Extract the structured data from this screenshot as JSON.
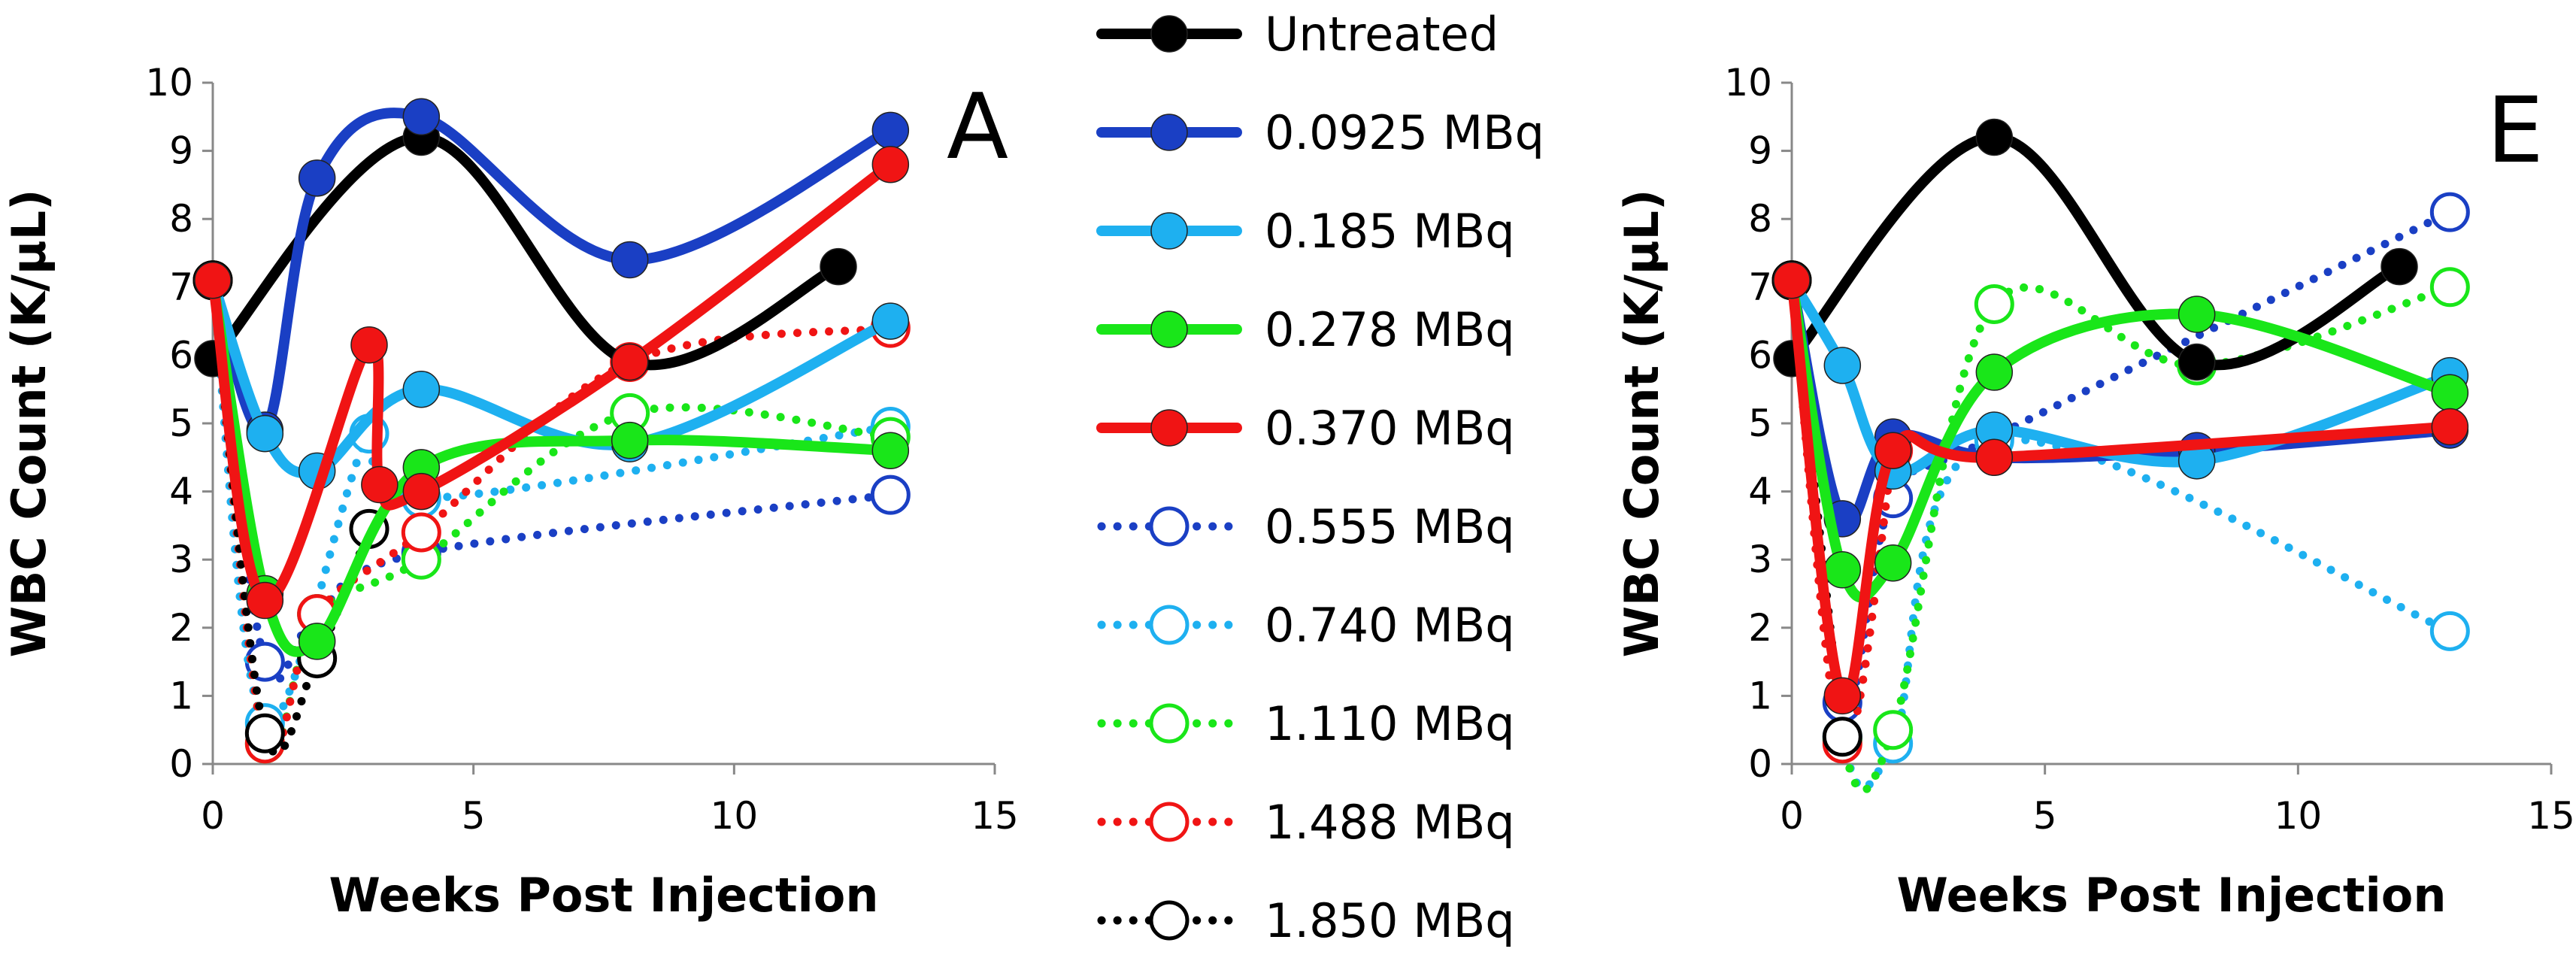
{
  "chart_data": [
    {
      "type": "line",
      "panel_label": "A",
      "xlabel": "Weeks Post Injection",
      "ylabel": "WBC Count (K/µL)",
      "xlim": [
        0,
        15
      ],
      "ylim": [
        0,
        10
      ],
      "xticks": [
        "0",
        "5",
        "10",
        "15"
      ],
      "yticks": [
        "0",
        "1",
        "2",
        "3",
        "4",
        "5",
        "6",
        "7",
        "8",
        "9",
        "10"
      ],
      "series": [
        {
          "name": "Untreated",
          "x": [
            0,
            4,
            8,
            12
          ],
          "y": [
            5.95,
            9.2,
            5.9,
            7.3
          ]
        },
        {
          "name": "0.0925 MBq",
          "x": [
            0,
            1,
            2,
            4,
            8,
            13
          ],
          "y": [
            7.1,
            4.9,
            8.6,
            9.5,
            7.4,
            9.3
          ]
        },
        {
          "name": "0.185 MBq",
          "x": [
            0,
            1,
            2,
            4,
            8,
            13
          ],
          "y": [
            7.1,
            4.85,
            4.3,
            5.5,
            4.7,
            6.5
          ]
        },
        {
          "name": "0.278 MBq",
          "x": [
            0,
            1,
            2,
            4,
            8,
            13
          ],
          "y": [
            7.1,
            2.5,
            1.8,
            4.35,
            4.75,
            4.6
          ]
        },
        {
          "name": "0.370 MBq",
          "x": [
            0,
            1,
            3,
            3.2,
            4,
            8,
            13
          ],
          "y": [
            7.1,
            2.4,
            6.15,
            4.1,
            4.0,
            5.9,
            8.8
          ]
        },
        {
          "name": "0.555 MBq",
          "x": [
            0,
            1,
            2,
            4,
            13
          ],
          "y": [
            7.1,
            1.5,
            2.2,
            3.1,
            3.95
          ]
        },
        {
          "name": "0.740 MBq",
          "x": [
            0,
            1,
            3,
            4,
            13
          ],
          "y": [
            7.1,
            0.6,
            4.85,
            3.9,
            4.95
          ]
        },
        {
          "name": "1.110 MBq",
          "x": [
            0,
            1,
            2,
            4,
            8,
            13
          ],
          "y": [
            7.1,
            0.3,
            2.2,
            3.0,
            5.15,
            4.8
          ]
        },
        {
          "name": "1.488 MBq",
          "x": [
            0,
            1,
            2,
            4,
            8,
            13
          ],
          "y": [
            7.1,
            0.3,
            2.2,
            3.4,
            5.9,
            6.4
          ]
        },
        {
          "name": "1.850 MBq",
          "x": [
            0,
            1,
            2,
            3
          ],
          "y": [
            7.1,
            0.45,
            1.55,
            3.45
          ]
        }
      ]
    },
    {
      "type": "line",
      "panel_label": "E",
      "xlabel": "Weeks Post Injection",
      "ylabel": "WBC Count (K/µL)",
      "xlim": [
        0,
        15
      ],
      "ylim": [
        0,
        10
      ],
      "xticks": [
        "0",
        "5",
        "10",
        "15"
      ],
      "yticks": [
        "0",
        "1",
        "2",
        "3",
        "4",
        "5",
        "6",
        "7",
        "8",
        "9",
        "10"
      ],
      "series": [
        {
          "name": "Untreated",
          "x": [
            0,
            4,
            8,
            12
          ],
          "y": [
            5.95,
            9.2,
            5.9,
            7.3
          ]
        },
        {
          "name": "0.0925 MBq",
          "x": [
            0,
            1,
            2,
            4,
            8,
            13
          ],
          "y": [
            7.1,
            3.6,
            4.8,
            4.5,
            4.6,
            4.9
          ]
        },
        {
          "name": "0.185 MBq",
          "x": [
            0,
            1,
            2,
            4,
            8,
            13
          ],
          "y": [
            7.1,
            5.85,
            4.3,
            4.9,
            4.45,
            5.7
          ]
        },
        {
          "name": "0.278 MBq",
          "x": [
            0,
            1,
            2,
            4,
            8,
            13
          ],
          "y": [
            7.1,
            2.85,
            2.95,
            5.75,
            6.6,
            5.45
          ]
        },
        {
          "name": "0.370 MBq",
          "x": [
            0,
            1,
            2,
            4,
            13
          ],
          "y": [
            7.1,
            1.0,
            4.6,
            4.5,
            4.95
          ]
        },
        {
          "name": "0.555 MBq",
          "x": [
            0,
            1,
            2,
            4,
            13
          ],
          "y": [
            7.1,
            0.9,
            3.9,
            4.8,
            8.1
          ]
        },
        {
          "name": "0.740 MBq",
          "x": [
            0,
            1,
            2,
            4,
            13
          ],
          "y": [
            7.1,
            0.4,
            0.3,
            4.75,
            1.95
          ]
        },
        {
          "name": "1.110 MBq",
          "x": [
            0,
            1,
            2,
            4,
            8,
            13
          ],
          "y": [
            7.1,
            0.35,
            0.5,
            6.75,
            5.85,
            7.0
          ]
        },
        {
          "name": "1.488 MBq",
          "x": [
            0,
            1,
            2
          ],
          "y": [
            7.1,
            0.3,
            4.6
          ]
        },
        {
          "name": "1.850 MBq",
          "x": [
            0,
            1
          ],
          "y": [
            7.1,
            0.4
          ]
        }
      ]
    }
  ],
  "legend": {
    "placement": "center",
    "entries": [
      {
        "label": "Untreated",
        "color": "#000000",
        "style": "solid",
        "marker": "filled"
      },
      {
        "label": "0.0925 MBq",
        "color": "#1a3fc4",
        "style": "solid",
        "marker": "filled"
      },
      {
        "label": "0.185 MBq",
        "color": "#1eb0f0",
        "style": "solid",
        "marker": "filled"
      },
      {
        "label": "0.278 MBq",
        "color": "#19e619",
        "style": "solid",
        "marker": "filled"
      },
      {
        "label": "0.370 MBq",
        "color": "#f01414",
        "style": "solid",
        "marker": "filled"
      },
      {
        "label": "0.555 MBq",
        "color": "#1a3fc4",
        "style": "dotted",
        "marker": "open"
      },
      {
        "label": "0.740 MBq",
        "color": "#1eb0f0",
        "style": "dotted",
        "marker": "open"
      },
      {
        "label": "1.110 MBq",
        "color": "#19e619",
        "style": "dotted",
        "marker": "open"
      },
      {
        "label": "1.488 MBq",
        "color": "#f01414",
        "style": "dotted",
        "marker": "open"
      },
      {
        "label": "1.850 MBq",
        "color": "#000000",
        "style": "dotted",
        "marker": "open"
      }
    ]
  }
}
